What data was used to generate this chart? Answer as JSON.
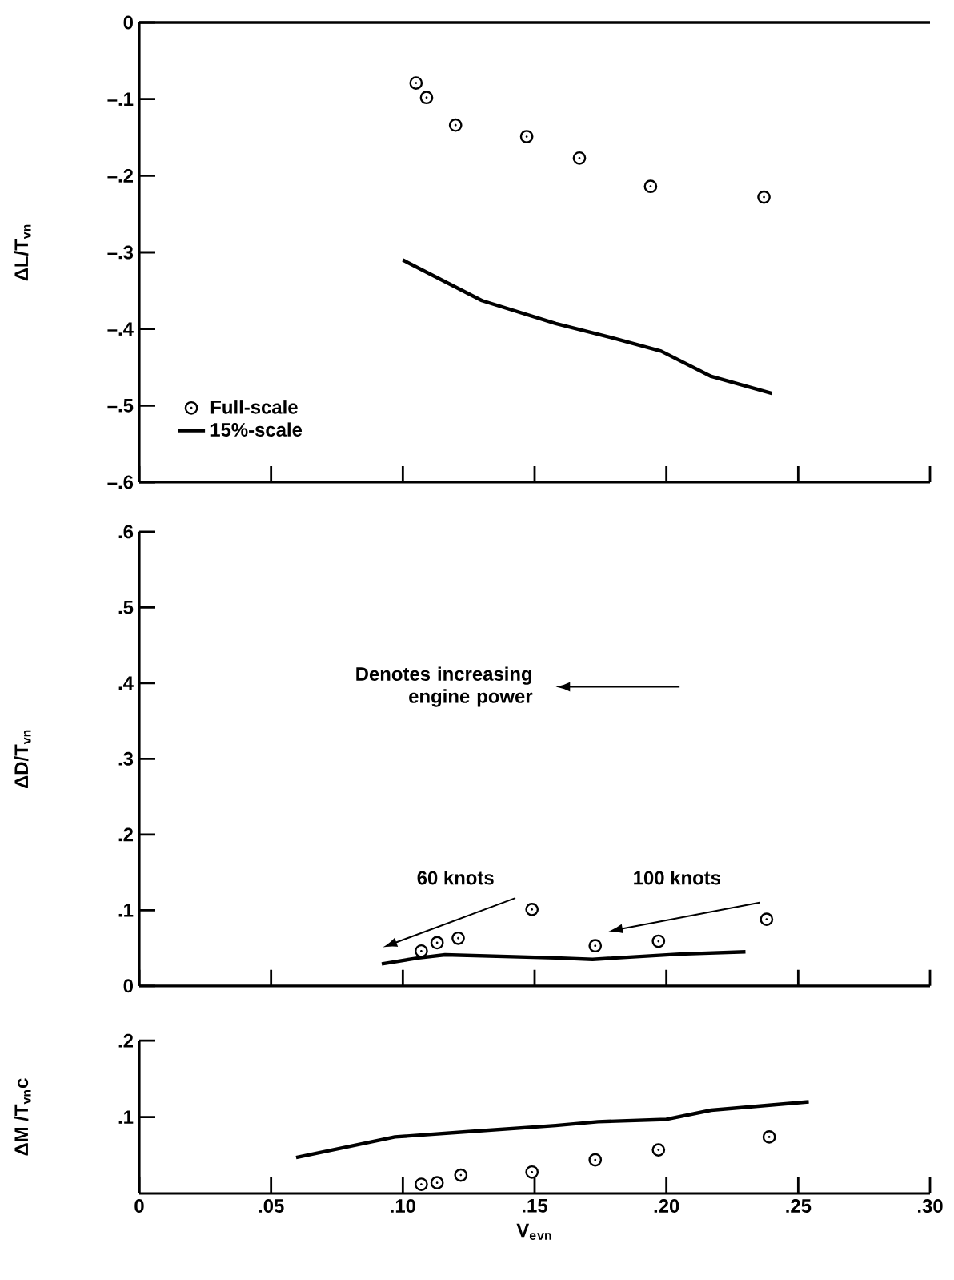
{
  "chart_data": [
    {
      "type": "scatter",
      "ylabel": "ΔL/T$_{vn}$",
      "xlim": [
        0,
        0.3
      ],
      "ylim": [
        -0.6,
        0
      ],
      "xticks": [
        {
          "value": 0,
          "label": null
        },
        {
          "value": 0.05,
          "label": null
        },
        {
          "value": 0.1,
          "label": null
        },
        {
          "value": 0.15,
          "label": null
        },
        {
          "value": 0.2,
          "label": null
        },
        {
          "value": 0.25,
          "label": null
        },
        {
          "value": 0.3,
          "label": null
        }
      ],
      "yticks": [
        {
          "value": -0.6,
          "label": "–.6"
        },
        {
          "value": -0.5,
          "label": "–.5"
        },
        {
          "value": -0.4,
          "label": "–.4"
        },
        {
          "value": -0.3,
          "label": "–.3"
        },
        {
          "value": -0.2,
          "label": "–.2"
        },
        {
          "value": -0.1,
          "label": "–.1"
        },
        0
      ],
      "tick_labels": "y",
      "legend": "bottom left",
      "ref_lines": [
        {
          "axis": "y",
          "value": 0,
          "color": "#000000"
        }
      ],
      "series": [
        {
          "name": "Full-scale",
          "marker": "circle",
          "color": "#000000",
          "x": [
            0.105,
            0.109,
            0.12,
            0.147,
            0.167,
            0.194,
            0.237
          ],
          "values": [
            -0.079,
            -0.098,
            -0.134,
            -0.149,
            -0.177,
            -0.214,
            -0.228
          ]
        },
        {
          "name": "15%-scale",
          "type": "line",
          "color": "#000000",
          "x": [
            0.1,
            0.13,
            0.158,
            0.181,
            0.198,
            0.217,
            0.24
          ],
          "values": [
            -0.31,
            -0.363,
            -0.393,
            -0.413,
            -0.429,
            -0.462,
            -0.484
          ]
        }
      ]
    },
    {
      "type": "scatter",
      "ylabel": "ΔD/T$_{vn}$",
      "xlim": [
        0,
        0.3
      ],
      "ylim": [
        0,
        0.6
      ],
      "xticks": [
        {
          "value": 0,
          "label": null
        },
        {
          "value": 0.05,
          "label": null
        },
        {
          "value": 0.1,
          "label": null
        },
        {
          "value": 0.15,
          "label": null
        },
        {
          "value": 0.2,
          "label": null
        },
        {
          "value": 0.25,
          "label": null
        },
        {
          "value": 0.3,
          "label": null
        }
      ],
      "yticks": [
        0,
        {
          "value": 0.1,
          "label": ".1"
        },
        {
          "value": 0.2,
          "label": ".2"
        },
        {
          "value": 0.3,
          "label": ".3"
        },
        {
          "value": 0.4,
          "label": ".4"
        },
        {
          "value": 0.5,
          "label": ".5"
        },
        {
          "value": 0.6,
          "label": ".6"
        }
      ],
      "tick_labels": "y",
      "annotations": [
        "Denotes increasing engine power",
        "60 knots",
        "100 knots"
      ],
      "series": [
        {
          "marker": "circle",
          "color": "#000000",
          "x": [
            0.107,
            0.113,
            0.121,
            0.149,
            0.173,
            0.197,
            0.238
          ],
          "values": [
            0.046,
            0.057,
            0.063,
            0.101,
            0.053,
            0.059,
            0.088
          ]
        },
        {
          "type": "line",
          "color": "#000000",
          "x": [
            0.092,
            0.106,
            0.116,
            0.158,
            0.172,
            0.205,
            0.23
          ],
          "values": [
            0.029,
            0.037,
            0.041,
            0.037,
            0.035,
            0.042,
            0.045
          ]
        }
      ]
    },
    {
      "type": "scatter",
      "ylabel": "ΔM /T$_{vn}$c",
      "xlabel": "V$_{e}$$_{vn}$",
      "xlim": [
        0,
        0.3
      ],
      "ylim": [
        0,
        0.2
      ],
      "xticks": [
        0,
        {
          "value": 0.05,
          "label": ".05"
        },
        {
          "value": 0.1,
          "label": ".10"
        },
        {
          "value": 0.15,
          "label": ".15"
        },
        {
          "value": 0.2,
          "label": ".20"
        },
        {
          "value": 0.25,
          "label": ".25"
        },
        {
          "value": 0.3,
          "label": ".30"
        }
      ],
      "yticks": [
        {
          "value": 0.1,
          "label": ".1"
        },
        {
          "value": 0.2,
          "label": ".2"
        }
      ],
      "series": [
        {
          "marker": "circle",
          "color": "#000000",
          "x": [
            0.107,
            0.113,
            0.122,
            0.149,
            0.173,
            0.197,
            0.239
          ],
          "values": [
            0.012,
            0.014,
            0.024,
            0.028,
            0.044,
            0.057,
            0.074
          ]
        },
        {
          "type": "line",
          "color": "#000000",
          "x": [
            0.0595,
            0.097,
            0.125,
            0.158,
            0.174,
            0.2,
            0.217,
            0.254
          ],
          "values": [
            0.047,
            0.074,
            0.081,
            0.089,
            0.094,
            0.097,
            0.109,
            0.12
          ]
        }
      ]
    }
  ]
}
